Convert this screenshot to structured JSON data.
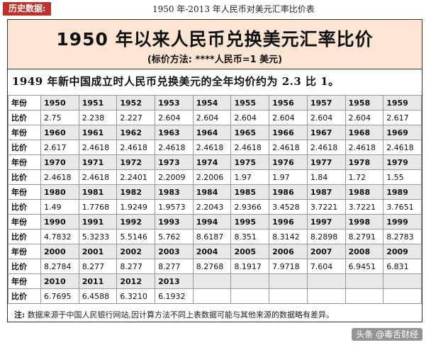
{
  "tag": "历史数据:",
  "caption": "1950 年-2013 年人民币对美元汇率比价表",
  "title": "1950 年以来人民币兑换美元汇率比价",
  "subtitle": "(标价方法: ****人民币=1 美元)",
  "intro": "1949 年新中国成立时人民币兑换美元的全年均价约为 2.3 比 1。",
  "labels": {
    "year": "年份",
    "rate": "比价"
  },
  "rows": [
    {
      "years": [
        "1950",
        "1951",
        "1952",
        "1953",
        "1954",
        "1955",
        "1956",
        "1957",
        "1958",
        "1959"
      ],
      "rates": [
        "2.75",
        "2.238",
        "2.227",
        "2.604",
        "2.604",
        "2.604",
        "2.604",
        "2.604",
        "2.604",
        "2.617"
      ]
    },
    {
      "years": [
        "1960",
        "1961",
        "1962",
        "1963",
        "1964",
        "1965",
        "1966",
        "1967",
        "1968",
        "1969"
      ],
      "rates": [
        "2.617",
        "2.4618",
        "2.4618",
        "2.4618",
        "2.4618",
        "2.4618",
        "2.4618",
        "2.4618",
        "2.4618",
        "2.4618"
      ]
    },
    {
      "years": [
        "1970",
        "1971",
        "1972",
        "1973",
        "1974",
        "1975",
        "1976",
        "1977",
        "1978",
        "1979"
      ],
      "rates": [
        "2.4618",
        "2.4618",
        "2.2401",
        "2.2009",
        "2.2006",
        "1.97",
        "1.97",
        "1.84",
        "1.72",
        "1.55"
      ]
    },
    {
      "years": [
        "1980",
        "1981",
        "1982",
        "1983",
        "1984",
        "1985",
        "1986",
        "1987",
        "1988",
        "1989"
      ],
      "rates": [
        "1.49",
        "1.7768",
        "1.9249",
        "1.9573",
        "2.2043",
        "2.9366",
        "3.4528",
        "3.7221",
        "3.7221",
        "3.7651"
      ]
    },
    {
      "years": [
        "1990",
        "1991",
        "1992",
        "1993",
        "1994",
        "1995",
        "1996",
        "1997",
        "1998",
        "1999"
      ],
      "rates": [
        "4.7832",
        "5.3233",
        "5.5146",
        "5.762",
        "8.6187",
        "8.351",
        "8.3142",
        "8.2898",
        "8.2791",
        "8.2783"
      ]
    },
    {
      "years": [
        "2000",
        "2001",
        "2002",
        "2003",
        "2004",
        "2005",
        "2006",
        "2007",
        "2008",
        "2009"
      ],
      "rates": [
        "8.2784",
        "8.277",
        "8.277",
        "8.277",
        "8.2768",
        "8.1917",
        "7.9718",
        "7.604",
        "6.9451",
        "6.831"
      ]
    },
    {
      "years": [
        "2010",
        "2011",
        "2012",
        "2013",
        "",
        "",
        "",
        "",
        "",
        ""
      ],
      "rates": [
        "6.7695",
        "6.4588",
        "6.3210",
        "6.1932",
        "",
        "",
        "",
        "",
        "",
        ""
      ]
    }
  ],
  "note": {
    "label": "注:",
    "text": "数据来源于中国人民银行网站,因计算方法不同上表数据可能与其他来源的数据略有差异。"
  },
  "watermark": "头条 @毒舌财经"
}
